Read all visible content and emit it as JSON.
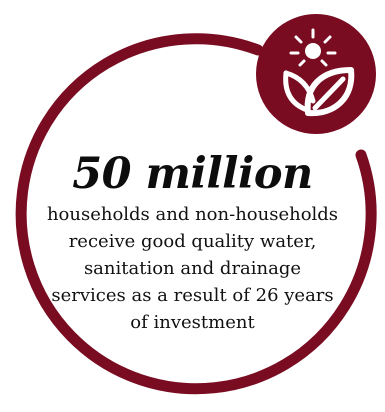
{
  "stat": {
    "value": "50 million",
    "description": "households and non-households receive good quality water, sanitation and drainage services as a result of 26 years of investment"
  },
  "colors": {
    "accent": "#7a0c22",
    "icon": "#ffffff",
    "text": "#111111"
  },
  "icons": {
    "badge": "sun-and-leaf-icon"
  }
}
